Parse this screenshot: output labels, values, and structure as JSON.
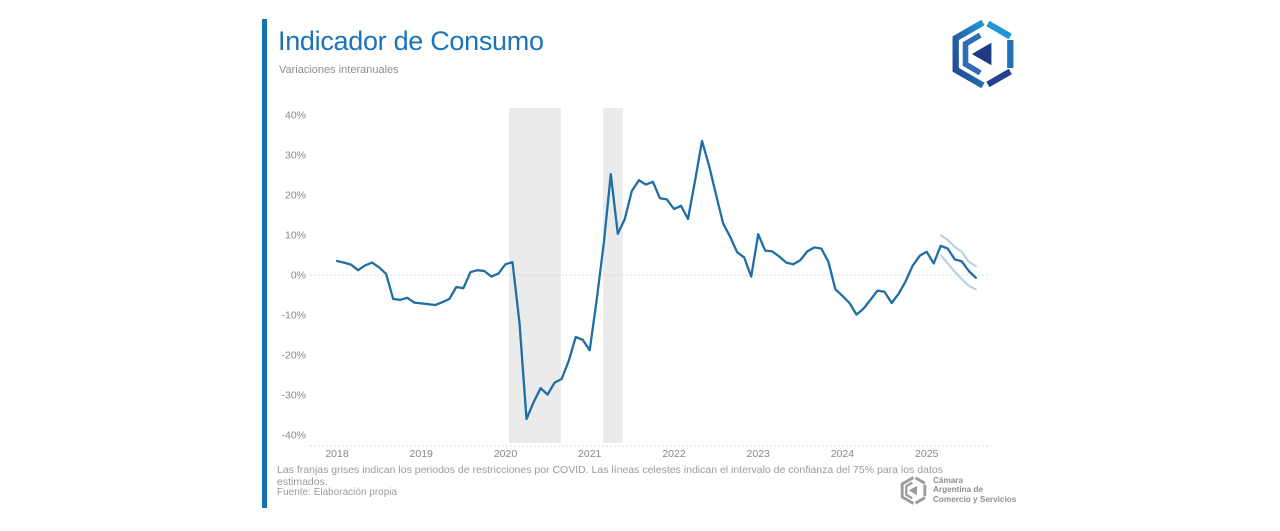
{
  "header": {
    "title": "Indicador de Consumo",
    "subtitle": "Variaciones interanuales"
  },
  "footer": {
    "note": "Las franjas grises indican los periodos de restricciones por COVID. Las líneas celestes indican el intervalo de confianza del 75% para los datos estimados.",
    "source": "Fuente: Elaboración propia",
    "logo_text": [
      "Cámara",
      "Argentina de",
      "Comercio y Servicios"
    ]
  },
  "colors": {
    "accent": "#1571b3",
    "title": "#1b74b8",
    "line": "#1f6ea6",
    "celeste": "#b7cfe2",
    "covid_band": "#ebebeb",
    "grid": "#cccccc",
    "tick_gray": "#87888a",
    "logo_gray": "#9b9b9b",
    "logo_gradient": [
      "#24418c",
      "#2196d4"
    ],
    "logo_navy": "#1d3a85"
  },
  "chart_data": {
    "type": "line",
    "title": "Indicador de Consumo",
    "subtitle": "Variaciones interanuales",
    "frequency": "monthly",
    "x_start": {
      "year": 2018,
      "month": 1
    },
    "units": "percent_yoy",
    "ylim": [
      -40,
      40
    ],
    "grid": "zero-line-only",
    "y_ticks": [
      40,
      30,
      20,
      10,
      0,
      -10,
      -20,
      -30,
      -40
    ],
    "x_ticks_years": [
      2018,
      2019,
      2020,
      2021,
      2022,
      2023,
      2024,
      2025
    ],
    "series": [
      {
        "name": "indicador_consumo",
        "values": [
          3.5,
          3.1,
          2.6,
          1.2,
          2.4,
          3.1,
          1.9,
          0.3,
          -6.0,
          -6.2,
          -5.7,
          -6.9,
          -7.1,
          -7.3,
          -7.5,
          -6.8,
          -6.0,
          -3.0,
          -3.3,
          0.7,
          1.2,
          1.0,
          -0.4,
          0.4,
          2.7,
          3.2,
          -12.0,
          -36.0,
          -31.8,
          -28.3,
          -29.9,
          -26.9,
          -26.0,
          -21.5,
          -15.5,
          -16.2,
          -18.8,
          -6.2,
          8.0,
          25.2,
          10.3,
          14.0,
          21.0,
          23.7,
          22.6,
          23.3,
          19.2,
          18.9,
          16.5,
          17.3,
          14.0,
          23.5,
          33.5,
          27.3,
          20.0,
          12.9,
          9.6,
          5.7,
          4.4,
          -0.4,
          10.2,
          6.1,
          5.9,
          4.6,
          3.1,
          2.7,
          3.7,
          5.9,
          6.9,
          6.6,
          3.3,
          -3.6,
          -5.2,
          -7.0,
          -9.9,
          -8.4,
          -6.2,
          -3.9,
          -4.2,
          -7.0,
          -4.7,
          -1.6,
          2.3,
          4.8,
          5.8,
          2.9,
          7.3,
          6.6,
          3.9,
          3.4,
          1.0,
          -0.7
        ]
      },
      {
        "name": "ic75_superior",
        "start_index": 86,
        "values": [
          9.9,
          8.8,
          7.0,
          5.8,
          3.3,
          2.2
        ]
      },
      {
        "name": "ic75_inferior",
        "start_index": 86,
        "values": [
          5.0,
          2.9,
          0.8,
          -1.0,
          -2.7,
          -3.6
        ]
      }
    ],
    "forecast_start_index": 86,
    "covid_bands_month_index": [
      [
        24.5,
        31.9
      ],
      [
        37.9,
        40.7
      ]
    ],
    "annotations": {
      "covid_bands_meaning": "periodos de restricciones por COVID",
      "celeste_meaning": "intervalo de confianza del 75% para los datos estimados"
    }
  }
}
